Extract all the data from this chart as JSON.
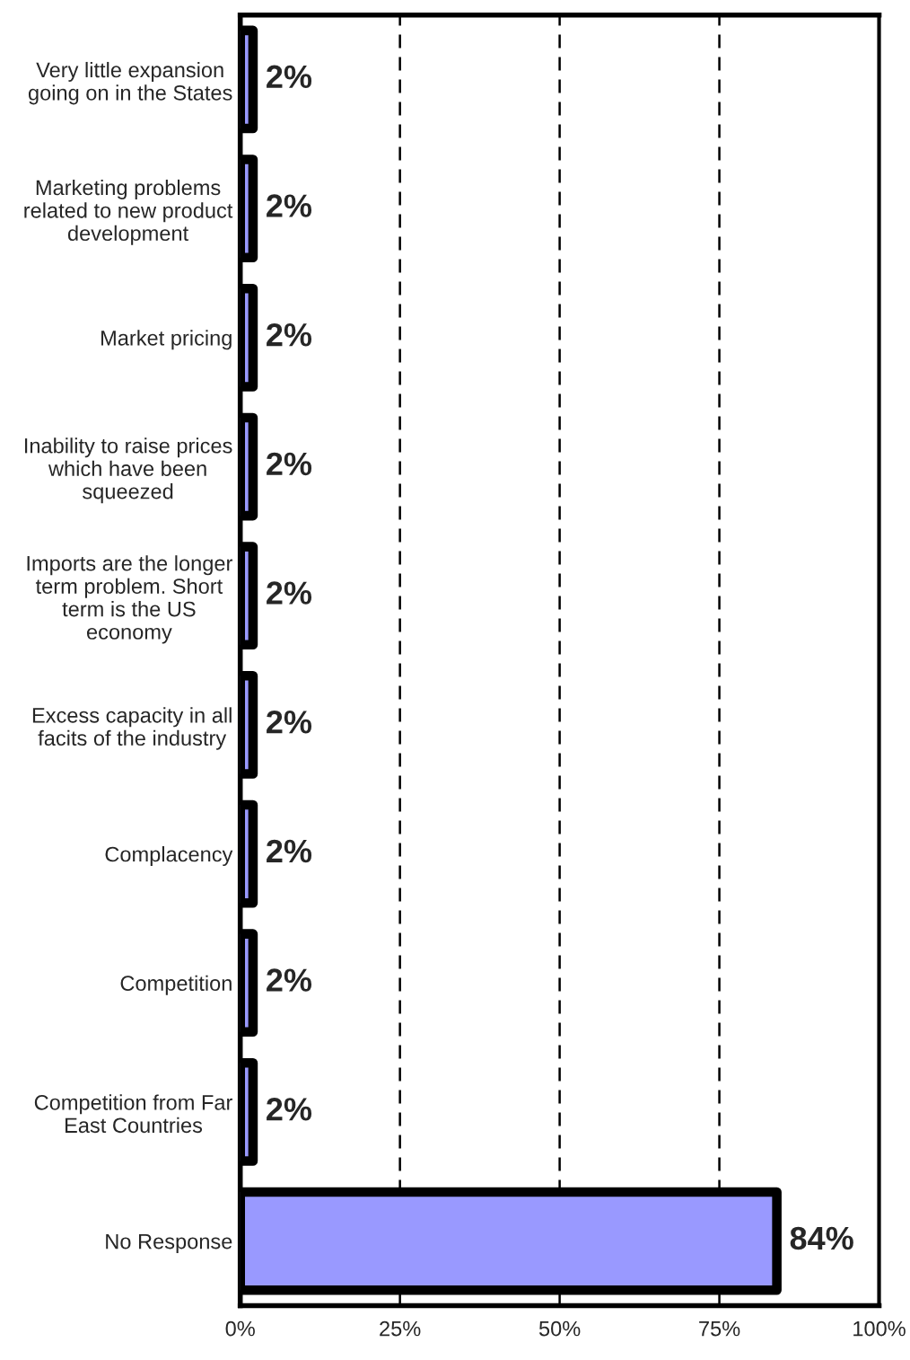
{
  "chart_data": {
    "type": "bar",
    "orientation": "horizontal",
    "categories": [
      "Very little expansion\ngoing on in the States",
      "Marketing problems\nrelated to new product\ndevelopment",
      "Market pricing",
      "Inability to raise prices\nwhich have been\nsqueezed",
      "Imports are the longer\nterm problem. Short\nterm is the US\neconomy",
      "Excess capacity in all\nfacits of the industry",
      "Complacency",
      "Competition",
      "Competition from Far\nEast Countries",
      "No Response"
    ],
    "series": [
      {
        "color": "#9999ff",
        "values": [
          2,
          2,
          2,
          2,
          2,
          2,
          2,
          2,
          2,
          84
        ],
        "value_labels": [
          "2%",
          "2%",
          "2%",
          "2%",
          "2%",
          "2%",
          "2%",
          "2%",
          "2%",
          "84%"
        ]
      }
    ],
    "xlim": [
      0,
      100
    ],
    "xticks": [
      {
        "value": 0,
        "label": "0%"
      },
      {
        "value": 25,
        "label": "25%"
      },
      {
        "value": 50,
        "label": "50%"
      },
      {
        "value": 75,
        "label": "75%"
      },
      {
        "value": 100,
        "label": "100%"
      }
    ],
    "grid": "x",
    "line_style": "dashed"
  }
}
